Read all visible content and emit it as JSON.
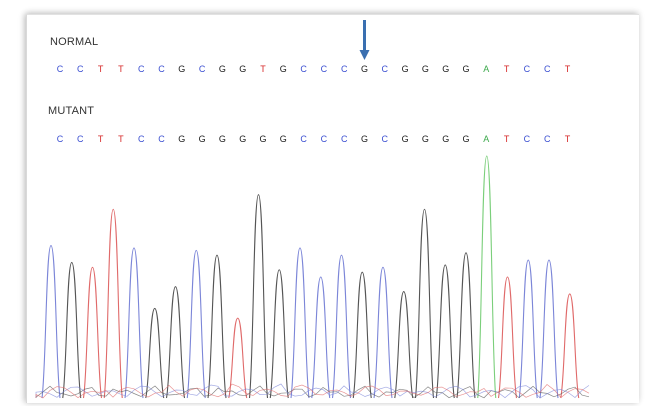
{
  "labels": {
    "normal": "NORMAL",
    "mutant": "MUTANT"
  },
  "colors": {
    "A": "#3aa84a",
    "C": "#3b4fd1",
    "G": "#1a1a1a",
    "T": "#d62828",
    "arrow": "#3a6fb0",
    "trace_black": "#555555",
    "trace_blue": "#7c86d8",
    "trace_red": "#e06a6a",
    "trace_green": "#7bcf7b"
  },
  "chart_data": {
    "type": "line",
    "title": "",
    "xlabel": "",
    "ylabel": "",
    "normal_calls": [
      "C",
      "C",
      "T",
      "T",
      "C",
      "C",
      "G",
      "C",
      "G",
      "G",
      "T",
      "G",
      "C",
      "C",
      "C",
      "G",
      "C",
      "G",
      "G",
      "G",
      "G",
      "A",
      "T",
      "C",
      "C",
      "T"
    ],
    "mutant_calls": [
      "C",
      "C",
      "T",
      "T",
      "C",
      "C",
      "G",
      "G",
      "G",
      "G",
      "G",
      "G",
      "C",
      "C",
      "C",
      "G",
      "C",
      "G",
      "G",
      "G",
      "G",
      "A",
      "T",
      "C",
      "C",
      "T"
    ],
    "arrow_position_index": 15,
    "peaks": [
      {
        "base": "C",
        "height": 0.63
      },
      {
        "base": "G",
        "height": 0.56
      },
      {
        "base": "T",
        "height": 0.54
      },
      {
        "base": "T",
        "height": 0.78
      },
      {
        "base": "C",
        "height": 0.62
      },
      {
        "base": "G",
        "height": 0.37
      },
      {
        "base": "G",
        "height": 0.46
      },
      {
        "base": "C",
        "height": 0.61
      },
      {
        "base": "G",
        "height": 0.59
      },
      {
        "base": "T",
        "height": 0.33
      },
      {
        "base": "G",
        "height": 0.84
      },
      {
        "base": "G",
        "height": 0.53
      },
      {
        "base": "C",
        "height": 0.62
      },
      {
        "base": "C",
        "height": 0.5
      },
      {
        "base": "C",
        "height": 0.59
      },
      {
        "base": "G",
        "height": 0.52
      },
      {
        "base": "C",
        "height": 0.54
      },
      {
        "base": "G",
        "height": 0.44
      },
      {
        "base": "G",
        "height": 0.78
      },
      {
        "base": "G",
        "height": 0.55
      },
      {
        "base": "G",
        "height": 0.6
      },
      {
        "base": "A",
        "height": 1.0
      },
      {
        "base": "T",
        "height": 0.5
      },
      {
        "base": "C",
        "height": 0.57
      },
      {
        "base": "C",
        "height": 0.57
      },
      {
        "base": "T",
        "height": 0.43
      }
    ]
  }
}
